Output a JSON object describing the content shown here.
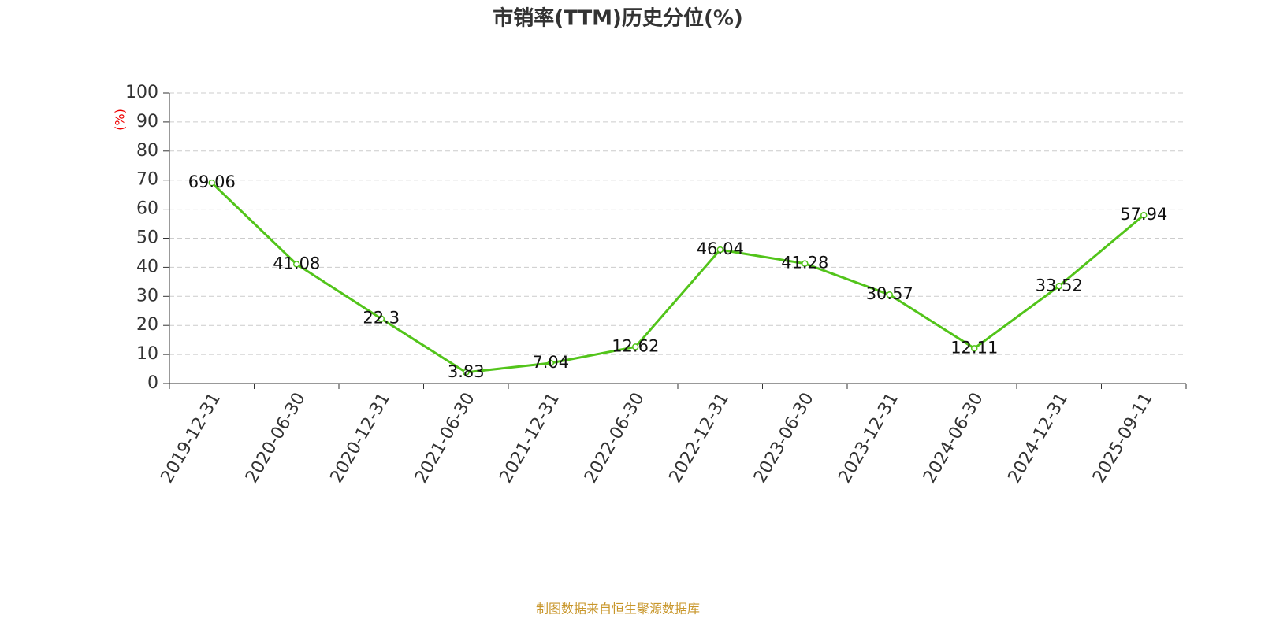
{
  "chart_data": {
    "type": "line",
    "title": "市销率(TTM)历史分位(%)",
    "y_label": "(%)",
    "source": "制图数据来自恒生聚源数据库",
    "categories": [
      "2019-12-31",
      "2020-06-30",
      "2020-12-31",
      "2021-06-30",
      "2021-12-31",
      "2022-06-30",
      "2022-12-31",
      "2023-06-30",
      "2023-12-31",
      "2024-06-30",
      "2024-12-31",
      "2025-09-11"
    ],
    "series": [
      {
        "name": "市销率(TTM)历史分位",
        "color": "#52c41a",
        "values": [
          69.06,
          41.08,
          22.3,
          3.83,
          7.04,
          12.62,
          46.04,
          41.28,
          30.57,
          12.11,
          33.52,
          57.94
        ]
      }
    ],
    "ylim": [
      0,
      100
    ],
    "yticks": [
      0,
      10,
      20,
      30,
      40,
      50,
      60,
      70,
      80,
      90,
      100
    ],
    "grid": true
  }
}
